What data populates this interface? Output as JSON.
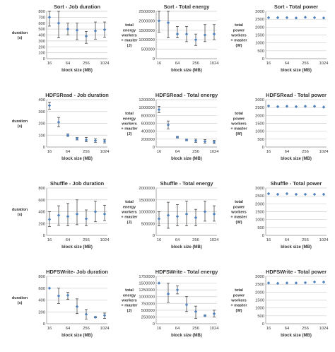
{
  "shared": {
    "block_size_label": "block size (MB)"
  },
  "chart_data": [
    {
      "type": "scatter",
      "title": "Sort - Job duration",
      "ylabel": [
        "duration",
        "(s)"
      ],
      "xlabel": "block size (MB)",
      "x": [
        16,
        32,
        64,
        128,
        256,
        512,
        1024
      ],
      "xticks": [
        "16",
        "64",
        "256",
        "1024"
      ],
      "xscale": "log2",
      "ylim": [
        0,
        800
      ],
      "yticks": [
        0,
        100,
        200,
        300,
        400,
        500,
        600,
        700,
        800
      ],
      "series": [
        {
          "values": [
            700,
            600,
            500,
            480,
            380,
            470,
            490
          ],
          "error": [
            [
              550,
              800
            ],
            [
              350,
              800
            ],
            [
              400,
              600
            ],
            [
              320,
              600
            ],
            [
              260,
              460
            ],
            [
              330,
              620
            ],
            [
              360,
              620
            ]
          ]
        }
      ]
    },
    {
      "type": "scatter",
      "title": "Sort - Total energy",
      "ylabel": [
        "total",
        "energy",
        "workers",
        "+ master",
        "(J)"
      ],
      "xlabel": "block size (MB)",
      "x": [
        16,
        32,
        64,
        128,
        256,
        512,
        1024
      ],
      "xticks": [
        "16",
        "64",
        "256",
        "1024"
      ],
      "xscale": "log2",
      "ylim": [
        0,
        2500000
      ],
      "yticks": [
        0,
        500000,
        1000000,
        1500000,
        2000000,
        2500000
      ],
      "series": [
        {
          "values": [
            2000000,
            1900000,
            1300000,
            1300000,
            1000000,
            1250000,
            1300000
          ],
          "error": [
            [
              1400000,
              2500000
            ],
            [
              1100000,
              2500000
            ],
            [
              1100000,
              1700000
            ],
            [
              900000,
              1700000
            ],
            [
              700000,
              1300000
            ],
            [
              900000,
              1800000
            ],
            [
              1000000,
              1800000
            ]
          ]
        }
      ]
    },
    {
      "type": "scatter",
      "title": "Sort - Total power",
      "ylabel": [
        "total",
        "power",
        "workers",
        "+ master",
        "(W)"
      ],
      "xlabel": "block size (MB)",
      "x": [
        16,
        32,
        64,
        128,
        256,
        512,
        1024
      ],
      "xticks": [
        "16",
        "64",
        "256",
        "1024"
      ],
      "xscale": "log2",
      "ylim": [
        0,
        3000
      ],
      "yticks": [
        0,
        500,
        1000,
        1500,
        2000,
        2500,
        3000
      ],
      "series": [
        {
          "values": [
            2600,
            2600,
            2600,
            2580,
            2620,
            2600,
            2580
          ],
          "error": []
        }
      ]
    },
    {
      "type": "scatter",
      "title": "HDFSRead - Job duration",
      "ylabel": [
        "duration",
        "(s)"
      ],
      "xlabel": "block size (MB)",
      "x": [
        16,
        32,
        64,
        128,
        256,
        512,
        1024
      ],
      "xticks": [
        "16",
        "64",
        "256",
        "1024"
      ],
      "xscale": "log2",
      "ylim": [
        0,
        400
      ],
      "yticks": [
        0,
        100,
        200,
        300,
        400
      ],
      "series": [
        {
          "values": [
            350,
            210,
            100,
            70,
            60,
            55,
            50
          ],
          "error": [
            [
              320,
              380
            ],
            [
              170,
              250
            ],
            [
              90,
              110
            ],
            [
              60,
              80
            ],
            [
              45,
              80
            ],
            [
              40,
              70
            ],
            [
              35,
              65
            ]
          ]
        }
      ]
    },
    {
      "type": "scatter",
      "title": "HDFSRead - Total energy",
      "ylabel": [
        "total",
        "energy",
        "workers",
        "+ master",
        "(J)"
      ],
      "xlabel": "block size (MB)",
      "x": [
        16,
        32,
        64,
        128,
        256,
        512,
        1024
      ],
      "xticks": [
        "16",
        "64",
        "256",
        "1024"
      ],
      "xscale": "log2",
      "ylim": [
        0,
        1200000
      ],
      "yticks": [
        0,
        200000,
        400000,
        600000,
        800000,
        1000000,
        1200000
      ],
      "series": [
        {
          "values": [
            950000,
            560000,
            250000,
            180000,
            160000,
            140000,
            130000
          ],
          "error": [
            [
              870000,
              1030000
            ],
            [
              460000,
              660000
            ],
            [
              230000,
              270000
            ],
            [
              160000,
              200000
            ],
            [
              120000,
              200000
            ],
            [
              100000,
              190000
            ],
            [
              90000,
              170000
            ]
          ]
        }
      ]
    },
    {
      "type": "scatter",
      "title": "HDFSRead - Total power",
      "ylabel": [
        "total",
        "power",
        "workers",
        "+ master",
        "(W)"
      ],
      "xlabel": "block size (MB)",
      "x": [
        16,
        32,
        64,
        128,
        256,
        512,
        1024
      ],
      "xticks": [
        "16",
        "64",
        "256",
        "1024"
      ],
      "xscale": "log2",
      "ylim": [
        0,
        3000
      ],
      "yticks": [
        0,
        500,
        1000,
        1500,
        2000,
        2500,
        3000
      ],
      "series": [
        {
          "values": [
            2600,
            2560,
            2580,
            2560,
            2580,
            2580,
            2530
          ],
          "error": []
        }
      ]
    },
    {
      "type": "scatter",
      "title": "Shuffle - Job duration",
      "ylabel": [
        "duration",
        "(s)"
      ],
      "xlabel": "block size (MB)",
      "x": [
        16,
        32,
        64,
        128,
        256,
        512,
        1024
      ],
      "xticks": [
        "16",
        "64",
        "256",
        "1024"
      ],
      "xscale": "log2",
      "ylim": [
        0,
        800
      ],
      "yticks": [
        0,
        200,
        400,
        600,
        800
      ],
      "series": [
        {
          "values": [
            270,
            340,
            320,
            360,
            280,
            400,
            360
          ],
          "error": [
            [
              150,
              400
            ],
            [
              170,
              500
            ],
            [
              160,
              540
            ],
            [
              180,
              600
            ],
            [
              160,
              430
            ],
            [
              230,
              580
            ],
            [
              250,
              510
            ]
          ]
        }
      ]
    },
    {
      "type": "scatter",
      "title": "Shuffle - Total energy",
      "ylabel": [
        "total",
        "energy",
        "workers",
        "+ master",
        "(J)"
      ],
      "xlabel": "block size (MB)",
      "x": [
        16,
        32,
        64,
        128,
        256,
        512,
        1024
      ],
      "xticks": [
        "16",
        "64",
        "256",
        "1024"
      ],
      "xscale": "log2",
      "ylim": [
        0,
        2000000
      ],
      "yticks": [
        0,
        500000,
        1000000,
        1500000,
        2000000
      ],
      "series": [
        {
          "values": [
            700000,
            850000,
            800000,
            900000,
            750000,
            1000000,
            900000
          ],
          "error": [
            [
              400000,
              1000000
            ],
            [
              300000,
              1400000
            ],
            [
              400000,
              1300000
            ],
            [
              400000,
              1450000
            ],
            [
              400000,
              1100000
            ],
            [
              600000,
              1450000
            ],
            [
              600000,
              1250000
            ]
          ]
        }
      ]
    },
    {
      "type": "scatter",
      "title": "Shuffle - Total power",
      "ylabel": [
        "total",
        "power",
        "workers",
        "+ master",
        "(W)"
      ],
      "xlabel": "block size (MB)",
      "x": [
        16,
        32,
        64,
        128,
        256,
        512,
        1024
      ],
      "xticks": [
        "16",
        "64",
        "256",
        "1024"
      ],
      "xscale": "log2",
      "ylim": [
        0,
        3000
      ],
      "yticks": [
        0,
        500,
        1000,
        1500,
        2000,
        2500,
        3000
      ],
      "series": [
        {
          "values": [
            2640,
            2600,
            2640,
            2600,
            2600,
            2600,
            2600
          ],
          "error": []
        }
      ]
    },
    {
      "type": "scatter",
      "title": "HDFSWrite- Job duration",
      "ylabel": [
        "duration",
        "(s)"
      ],
      "xlabel": "block size (MB)",
      "x": [
        16,
        32,
        64,
        128,
        256,
        512,
        1024
      ],
      "xticks": [
        "16",
        "64",
        "256",
        "1024"
      ],
      "xscale": "log2",
      "ylim": [
        0,
        800
      ],
      "yticks": [
        0,
        200,
        400,
        600,
        800
      ],
      "series": [
        {
          "values": [
            600,
            470,
            480,
            290,
            160,
            110,
            140
          ],
          "error": [
            [
              600,
              600
            ],
            [
              340,
              600
            ],
            [
              410,
              530
            ],
            [
              170,
              420
            ],
            [
              80,
              240
            ],
            [
              100,
              120
            ],
            [
              90,
              180
            ]
          ]
        }
      ]
    },
    {
      "type": "scatter",
      "title": "HDFSWrite - Total energy",
      "ylabel": [
        "total",
        "energy",
        "workers",
        "+ master",
        "(J)"
      ],
      "xlabel": "block size (MB)",
      "x": [
        16,
        32,
        64,
        128,
        256,
        512,
        1024
      ],
      "xticks": [
        "16",
        "64",
        "256",
        "1024"
      ],
      "xscale": "log2",
      "ylim": [
        0,
        1750000
      ],
      "yticks": [
        0,
        250000,
        500000,
        750000,
        1000000,
        1250000,
        1500000,
        1750000
      ],
      "series": [
        {
          "values": [
            1500000,
            1100000,
            1250000,
            700000,
            450000,
            300000,
            370000
          ],
          "error": [
            [
              1500000,
              1500000
            ],
            [
              800000,
              1500000
            ],
            [
              1100000,
              1400000
            ],
            [
              450000,
              1000000
            ],
            [
              200000,
              650000
            ],
            [
              280000,
              320000
            ],
            [
              250000,
              500000
            ]
          ]
        }
      ]
    },
    {
      "type": "scatter",
      "title": "HDFSWrite - Total power",
      "ylabel": [
        "total",
        "power",
        "workers",
        "+ master",
        "(W)"
      ],
      "xlabel": "block size (MB)",
      "x": [
        16,
        32,
        64,
        128,
        256,
        512,
        1024
      ],
      "xticks": [
        "16",
        "64",
        "256",
        "1024"
      ],
      "xscale": "log2",
      "ylim": [
        0,
        3000
      ],
      "yticks": [
        0,
        500,
        1000,
        1500,
        2000,
        2500,
        3000
      ],
      "series": [
        {
          "values": [
            2580,
            2560,
            2580,
            2580,
            2600,
            2650,
            2640
          ],
          "error": []
        }
      ]
    }
  ]
}
